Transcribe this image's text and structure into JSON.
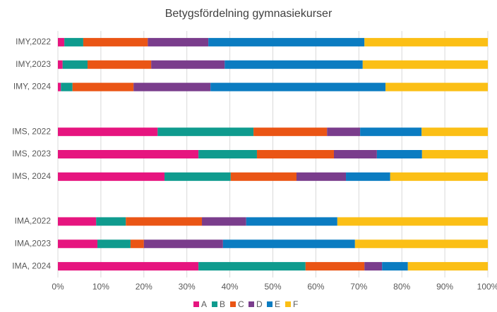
{
  "chart_data": {
    "type": "stacked-bar-horizontal",
    "title": "Betygsfördelning gymnasiekurser",
    "categories": [
      "IMY,2022",
      "IMY,2023",
      "IMY, 2024",
      null,
      "IMS, 2022",
      "IMS, 2023",
      "IMS, 2024",
      null,
      "IMA,2022",
      "IMA,2023",
      "IMA, 2024"
    ],
    "series": [
      {
        "name": "A",
        "color": "#e6157f",
        "values": [
          1.5,
          1.1,
          0.7,
          null,
          23.2,
          32.7,
          24.8,
          null,
          8.9,
          9.2,
          32.7
        ]
      },
      {
        "name": "B",
        "color": "#0f9b8e",
        "values": [
          4.4,
          5.8,
          2.7,
          null,
          22.3,
          13.6,
          15.4,
          null,
          6.9,
          7.7,
          24.9
        ]
      },
      {
        "name": "C",
        "color": "#ea5515",
        "values": [
          15,
          14.8,
          14.2,
          null,
          17.1,
          17.9,
          15.3,
          null,
          17.7,
          3.1,
          13.7
        ]
      },
      {
        "name": "D",
        "color": "#7a3d8c",
        "values": [
          14.1,
          17.1,
          17.9,
          null,
          7.7,
          10,
          11.5,
          null,
          10.3,
          18.4,
          4.1
        ]
      },
      {
        "name": "E",
        "color": "#0b7cc1",
        "values": [
          36.3,
          32.1,
          40.7,
          null,
          14.3,
          10.5,
          10.3,
          null,
          21.2,
          30.7,
          6
        ]
      },
      {
        "name": "F",
        "color": "#fbbf16",
        "values": [
          28.7,
          29.1,
          23.8,
          null,
          15.4,
          15.3,
          22.7,
          null,
          35,
          30.9,
          18.6
        ]
      }
    ],
    "xlim": [
      0,
      100
    ],
    "xticks": [
      {
        "value": 0,
        "label": "0%"
      },
      {
        "value": 10,
        "label": "10%"
      },
      {
        "value": 20,
        "label": "20%"
      },
      {
        "value": 30,
        "label": "30%"
      },
      {
        "value": 40,
        "label": "40%"
      },
      {
        "value": 50,
        "label": "50%"
      },
      {
        "value": 60,
        "label": "60%"
      },
      {
        "value": 70,
        "label": "70%"
      },
      {
        "value": 80,
        "label": "80%"
      },
      {
        "value": 90,
        "label": "90%"
      },
      {
        "value": 100,
        "label": "100%"
      }
    ],
    "grid": true,
    "legend": "bottom"
  }
}
